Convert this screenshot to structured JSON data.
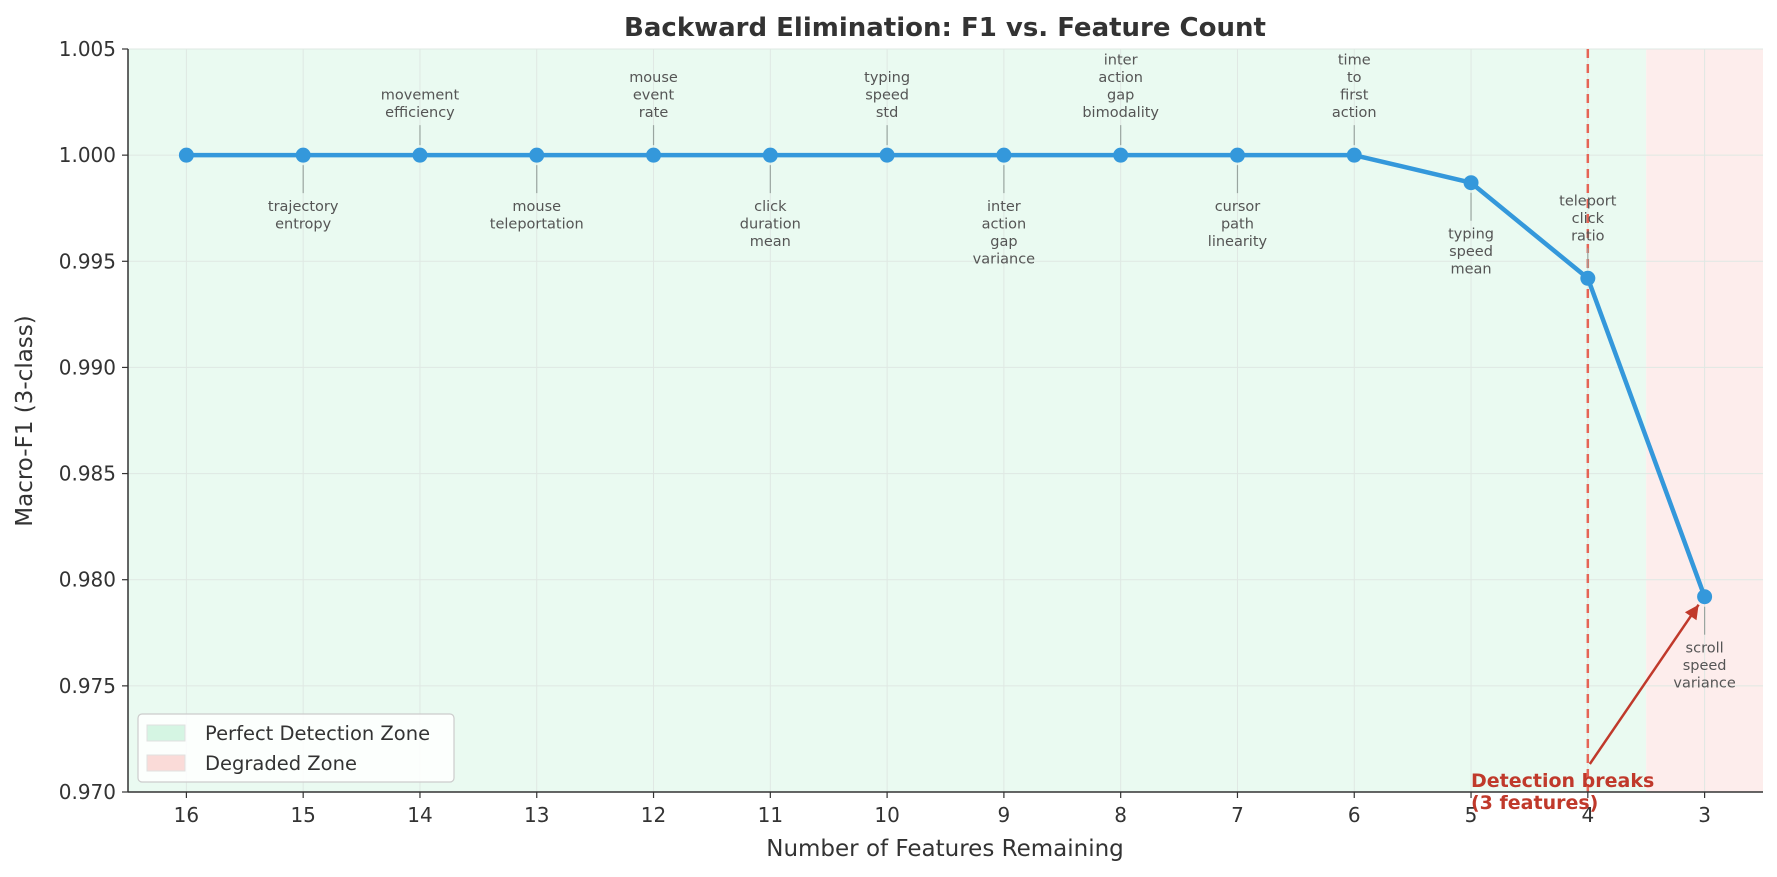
{
  "chart_data": {
    "type": "line",
    "title": "Backward Elimination: F1 vs. Feature Count",
    "xlabel": "Number of Features Remaining",
    "ylabel": "Macro-F1 (3-class)",
    "x": [
      16,
      15,
      14,
      13,
      12,
      11,
      10,
      9,
      8,
      7,
      6,
      5,
      4,
      3
    ],
    "x_ticks": [
      "16",
      "15",
      "14",
      "13",
      "12",
      "11",
      "10",
      "9",
      "8",
      "7",
      "6",
      "5",
      "4",
      "3"
    ],
    "xlim": [
      16.5,
      2.5
    ],
    "ylim": [
      0.97,
      1.005
    ],
    "y_ticks": [
      "0.970",
      "0.975",
      "0.980",
      "0.985",
      "0.990",
      "0.995",
      "1.000",
      "1.005"
    ],
    "series": [
      {
        "color": "#3498db",
        "values": [
          1.0,
          1.0,
          1.0,
          1.0,
          1.0,
          1.0,
          1.0,
          1.0,
          1.0,
          1.0,
          1.0,
          0.9987,
          0.9942,
          0.9792
        ]
      }
    ],
    "point_labels": [
      {
        "x": 15,
        "lines": [
          "trajectory",
          "entropy"
        ],
        "position": "below"
      },
      {
        "x": 14,
        "lines": [
          "movement",
          "efficiency"
        ],
        "position": "above"
      },
      {
        "x": 13,
        "lines": [
          "mouse",
          "teleportation"
        ],
        "position": "below"
      },
      {
        "x": 12,
        "lines": [
          "mouse",
          "event",
          "rate"
        ],
        "position": "above"
      },
      {
        "x": 11,
        "lines": [
          "click",
          "duration",
          "mean"
        ],
        "position": "below"
      },
      {
        "x": 10,
        "lines": [
          "typing",
          "speed",
          "std"
        ],
        "position": "above"
      },
      {
        "x": 9,
        "lines": [
          "inter",
          "action",
          "gap",
          "variance"
        ],
        "position": "below"
      },
      {
        "x": 8,
        "lines": [
          "inter",
          "action",
          "gap",
          "bimodality"
        ],
        "position": "above"
      },
      {
        "x": 7,
        "lines": [
          "cursor",
          "path",
          "linearity"
        ],
        "position": "below"
      },
      {
        "x": 6,
        "lines": [
          "time",
          "to",
          "first",
          "action"
        ],
        "position": "above"
      },
      {
        "x": 5,
        "lines": [
          "typing",
          "speed",
          "mean"
        ],
        "position": "below"
      },
      {
        "x": 4,
        "lines": [
          "teleport",
          "click",
          "ratio"
        ],
        "position": "above"
      },
      {
        "x": 3,
        "lines": [
          "scroll",
          "speed",
          "variance"
        ],
        "position": "below"
      }
    ],
    "zones": [
      {
        "name": "Perfect Detection Zone",
        "x_from": 16.5,
        "x_to": 3.5,
        "color": "#eafaf1",
        "legend_color": "#d5f5e3"
      },
      {
        "name": "Degraded Zone",
        "x_from": 3.5,
        "x_to": 2.5,
        "color": "#fdedec",
        "legend_color": "#fadbd8"
      }
    ],
    "threshold_line": {
      "x": 4,
      "color": "#e74c3c",
      "style": "dashed"
    },
    "annotation": {
      "lines": [
        "Detection breaks",
        "(3 features)"
      ],
      "color": "#c0392b",
      "arrow_to_x": 3
    },
    "legend_position": "bottom-left",
    "grid": true
  }
}
